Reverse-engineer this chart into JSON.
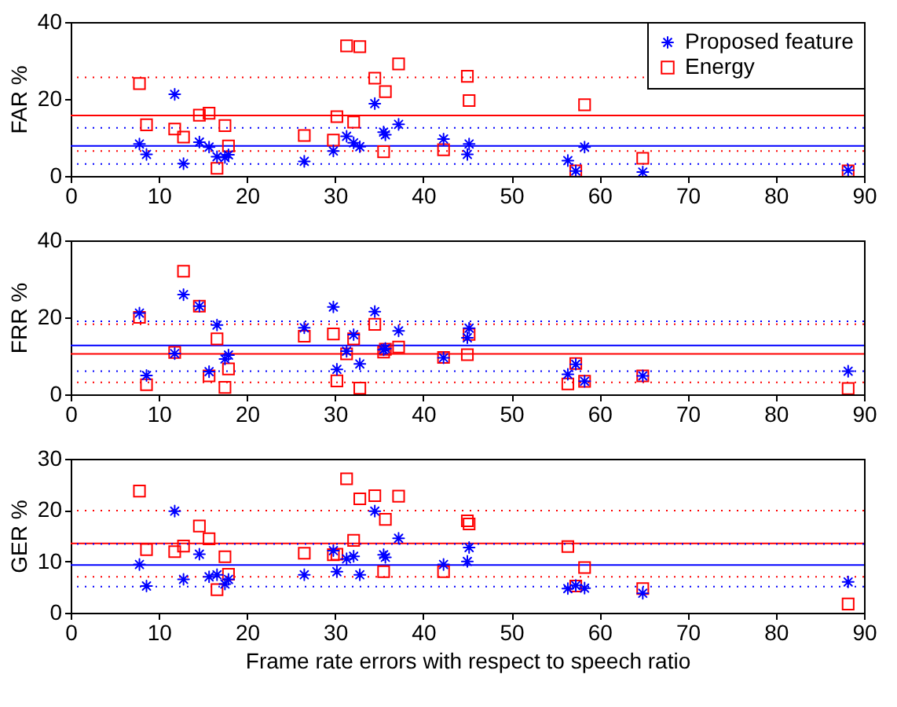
{
  "chart_data": [
    {
      "type": "scatter",
      "ylabel": "FAR %",
      "xlim": [
        0,
        90
      ],
      "xticks": [
        0,
        10,
        20,
        30,
        40,
        50,
        60,
        70,
        80,
        90
      ],
      "ylim": [
        0,
        40
      ],
      "yticks": [
        0,
        20,
        40
      ],
      "grid": false,
      "legend": "top right",
      "x": [
        7.8,
        8.6,
        11.8,
        12.8,
        14.6,
        15.7,
        16.6,
        17.5,
        17.9,
        26.5,
        29.8,
        30.2,
        31.3,
        32.1,
        32.8,
        34.5,
        35.5,
        35.7,
        37.2,
        42.3,
        45.0,
        45.2,
        56.4,
        57.3,
        58.3,
        64.9,
        88.2
      ],
      "series": [
        {
          "name": "Proposed feature",
          "color": "#0000ff",
          "marker": "cross",
          "values": [
            8.3,
            5.6,
            21.2,
            3.2,
            8.8,
            7.5,
            5.0,
            4.8,
            5.5,
            3.8,
            6.5,
            null,
            10.3,
            8.6,
            7.6,
            18.8,
            11.4,
            10.7,
            13.4,
            9.6,
            5.6,
            8.3,
            4.0,
            1.3,
            7.5,
            1.0,
            1.5
          ]
        },
        {
          "name": "Energy",
          "color": "#ff0000",
          "marker": "square",
          "values": [
            24.0,
            13.3,
            12.2,
            10.1,
            15.8,
            16.3,
            2.0,
            13.1,
            7.8,
            10.5,
            9.3,
            15.4,
            33.8,
            14.0,
            33.6,
            25.4,
            6.3,
            21.9,
            29.1,
            6.8,
            25.9,
            19.6,
            null,
            1.3,
            18.5,
            4.6,
            1.3
          ]
        }
      ],
      "ref_lines": [
        {
          "axis": "y",
          "value": 15.7,
          "color": "#ff0000",
          "line_style": "solid"
        },
        {
          "axis": "y",
          "value": 7.8,
          "color": "#0000ff",
          "line_style": "solid"
        },
        {
          "axis": "y",
          "value": 25.6,
          "color": "#ff0000",
          "line_style": "dotted"
        },
        {
          "axis": "y",
          "value": 6.5,
          "color": "#ff0000",
          "line_style": "dotted"
        },
        {
          "axis": "y",
          "value": 12.5,
          "color": "#0000ff",
          "line_style": "dotted"
        },
        {
          "axis": "y",
          "value": 3.1,
          "color": "#0000ff",
          "line_style": "dotted"
        }
      ]
    },
    {
      "type": "scatter",
      "ylabel": "FRR %",
      "xlim": [
        0,
        90
      ],
      "xticks": [
        0,
        10,
        20,
        30,
        40,
        50,
        60,
        70,
        80,
        90
      ],
      "ylim": [
        0,
        40
      ],
      "yticks": [
        0,
        20,
        40
      ],
      "grid": false,
      "x": [
        7.8,
        8.6,
        11.8,
        12.8,
        14.6,
        15.7,
        16.6,
        17.5,
        17.9,
        26.5,
        29.8,
        30.2,
        31.3,
        32.1,
        32.8,
        34.5,
        35.5,
        35.7,
        37.2,
        42.3,
        45.0,
        45.2,
        56.4,
        57.3,
        58.3,
        64.9,
        88.2
      ],
      "series": [
        {
          "color": "#0000ff",
          "marker": "cross",
          "values": [
            21.1,
            4.9,
            10.6,
            25.9,
            22.9,
            5.9,
            18.0,
            9.2,
            10.2,
            17.3,
            22.7,
            6.5,
            11.2,
            15.5,
            7.9,
            21.5,
            11.6,
            11.9,
            16.5,
            9.5,
            14.7,
            17.2,
            5.2,
            7.8,
            3.4,
            4.8,
            6.0
          ]
        },
        {
          "color": "#ff0000",
          "marker": "square",
          "values": [
            20.0,
            2.5,
            10.9,
            32.0,
            22.9,
            4.8,
            14.4,
            1.8,
            6.6,
            15.1,
            15.7,
            3.5,
            10.5,
            14.4,
            1.6,
            18.2,
            11.0,
            11.7,
            12.3,
            9.6,
            10.3,
            15.6,
            2.7,
            8.0,
            3.4,
            4.8,
            1.5
          ]
        }
      ],
      "ref_lines": [
        {
          "axis": "y",
          "value": 12.7,
          "color": "#0000ff",
          "line_style": "solid"
        },
        {
          "axis": "y",
          "value": 10.5,
          "color": "#ff0000",
          "line_style": "solid"
        },
        {
          "axis": "y",
          "value": 19.0,
          "color": "#0000ff",
          "line_style": "dotted"
        },
        {
          "axis": "y",
          "value": 6.0,
          "color": "#0000ff",
          "line_style": "dotted"
        },
        {
          "axis": "y",
          "value": 18.2,
          "color": "#ff0000",
          "line_style": "dotted"
        },
        {
          "axis": "y",
          "value": 3.1,
          "color": "#ff0000",
          "line_style": "dotted"
        }
      ]
    },
    {
      "type": "scatter",
      "ylabel": "GER %",
      "xlabel": "Frame rate errors with respect to speech ratio",
      "xlim": [
        0,
        90
      ],
      "xticks": [
        0,
        10,
        20,
        30,
        40,
        50,
        60,
        70,
        80,
        90
      ],
      "ylim": [
        0,
        30
      ],
      "yticks": [
        0,
        10,
        20,
        30
      ],
      "grid": false,
      "x": [
        7.8,
        8.6,
        11.8,
        12.8,
        14.6,
        15.7,
        16.6,
        17.5,
        17.9,
        26.5,
        29.8,
        30.2,
        31.3,
        32.1,
        32.8,
        34.5,
        35.5,
        35.7,
        37.2,
        42.3,
        45.0,
        45.2,
        56.4,
        57.3,
        58.3,
        64.9,
        88.2
      ],
      "series": [
        {
          "color": "#0000ff",
          "marker": "cross",
          "values": [
            9.4,
            5.2,
            19.8,
            6.5,
            11.4,
            7.0,
            7.4,
            5.6,
            6.5,
            7.4,
            12.1,
            8.0,
            10.5,
            11.0,
            7.4,
            19.8,
            11.3,
            10.8,
            14.5,
            9.4,
            10.0,
            12.7,
            4.7,
            5.3,
            4.8,
            3.8,
            6.0
          ]
        },
        {
          "color": "#ff0000",
          "marker": "square",
          "values": [
            23.7,
            12.3,
            11.9,
            13.0,
            16.9,
            14.4,
            4.5,
            10.9,
            7.5,
            11.6,
            11.3,
            11.4,
            26.1,
            14.1,
            22.2,
            22.8,
            8.0,
            18.2,
            22.7,
            8.0,
            17.9,
            17.3,
            12.9,
            5.2,
            8.8,
            4.7,
            1.7
          ]
        }
      ],
      "ref_lines": [
        {
          "axis": "y",
          "value": 13.5,
          "color": "#ff0000",
          "line_style": "solid"
        },
        {
          "axis": "y",
          "value": 9.3,
          "color": "#0000ff",
          "line_style": "solid"
        },
        {
          "axis": "y",
          "value": 19.9,
          "color": "#ff0000",
          "line_style": "dotted"
        },
        {
          "axis": "y",
          "value": 7.0,
          "color": "#ff0000",
          "line_style": "dotted"
        },
        {
          "axis": "y",
          "value": 13.4,
          "color": "#0000ff",
          "line_style": "dotted"
        },
        {
          "axis": "y",
          "value": 5.1,
          "color": "#0000ff",
          "line_style": "dotted"
        }
      ]
    }
  ]
}
